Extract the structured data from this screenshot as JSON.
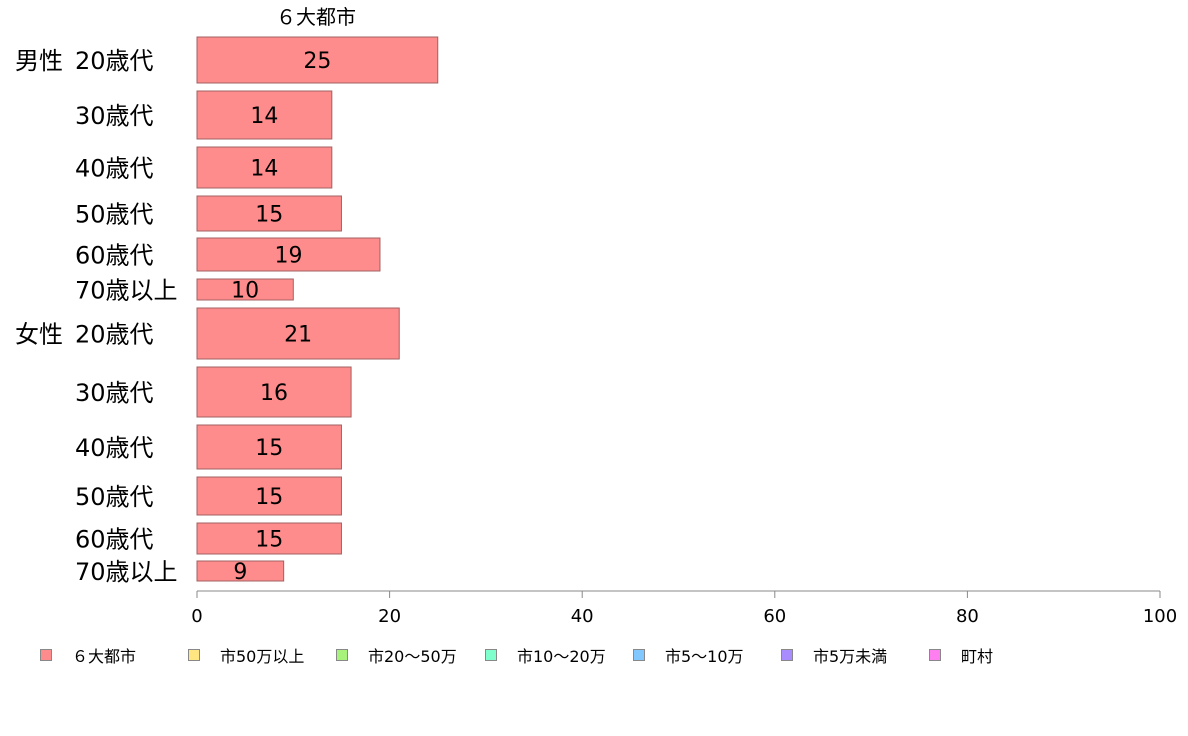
{
  "chart_data": {
    "type": "bar",
    "orientation": "horizontal",
    "column_header": "６大都市",
    "groups": [
      {
        "label": "男性",
        "categories": [
          "20歳代",
          "30歳代",
          "40歳代",
          "50歳代",
          "60歳代",
          "70歳以上"
        ],
        "values": [
          25,
          14,
          14,
          15,
          19,
          10
        ]
      },
      {
        "label": "女性",
        "categories": [
          "20歳代",
          "30歳代",
          "40歳代",
          "50歳代",
          "60歳代",
          "70歳以上"
        ],
        "values": [
          21,
          16,
          15,
          15,
          15,
          9
        ]
      }
    ],
    "xlim": [
      0,
      100
    ],
    "xticks": [
      "0",
      "20",
      "40",
      "60",
      "80",
      "100"
    ],
    "grid": false,
    "bar_color": "#ff8c8c",
    "bar_edge": "#a06060",
    "legend": {
      "placement": "bottom",
      "items": [
        {
          "label": "６大都市",
          "color": "#ff8c8c"
        },
        {
          "label": "市50万以上",
          "color": "#ffe680"
        },
        {
          "label": "市20〜50万",
          "color": "#a6f27a"
        },
        {
          "label": "市10〜20万",
          "color": "#7fffcc"
        },
        {
          "label": "市5〜10万",
          "color": "#80c8ff"
        },
        {
          "label": "市5万未満",
          "color": "#a98cff"
        },
        {
          "label": "町村",
          "color": "#ff7ff0"
        }
      ]
    }
  }
}
